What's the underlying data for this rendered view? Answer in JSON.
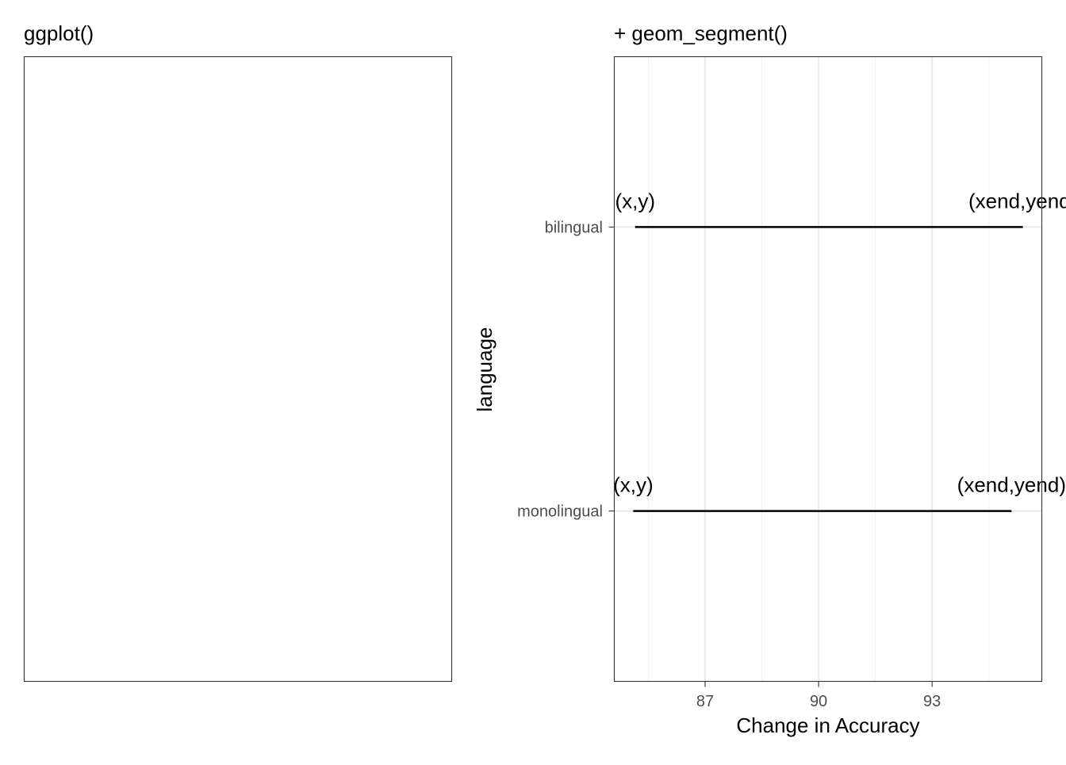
{
  "panels": {
    "left": {
      "title": "ggplot()"
    },
    "right": {
      "title": "+ geom_segment()"
    }
  },
  "chart_data": [
    {
      "type": "blank",
      "title": "ggplot()"
    },
    {
      "type": "segment",
      "title": "+ geom_segment()",
      "xlabel": "Change in Accuracy",
      "ylabel": "language",
      "x_ticks": [
        87,
        90,
        93
      ],
      "xlim": [
        84.6,
        95.9
      ],
      "categories": [
        "bilingual",
        "monolingual"
      ],
      "segments": [
        {
          "category": "bilingual",
          "x": 85.15,
          "xend": 95.4,
          "start_label": "(x,y)",
          "end_label": "(xend,yend)"
        },
        {
          "category": "monolingual",
          "x": 85.1,
          "xend": 95.1,
          "start_label": "(x,y)",
          "end_label": "(xend,yend)"
        }
      ],
      "grid": true,
      "theme": "bw",
      "colors": {
        "segment": "#000000",
        "grid_major": "#ebebeb",
        "grid_minor": "#f2f2f2",
        "border": "#333333"
      }
    }
  ]
}
